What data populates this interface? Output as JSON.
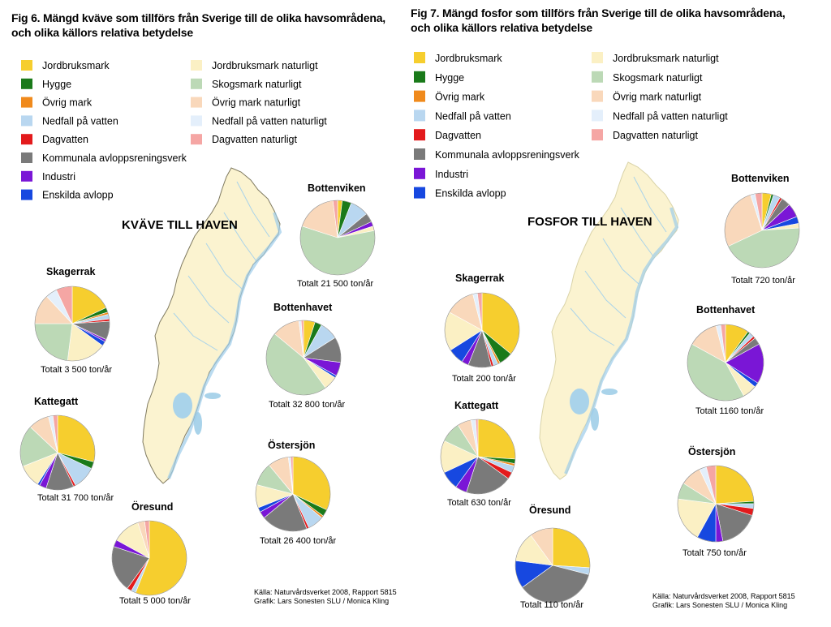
{
  "categories": [
    {
      "label": "Jordbruksmark",
      "color": "#f6ce2e"
    },
    {
      "label": "Hygge",
      "color": "#1a7a1a"
    },
    {
      "label": "Övrig mark",
      "color": "#f08a1c"
    },
    {
      "label": "Nedfall på vatten",
      "color": "#b9d7f0"
    },
    {
      "label": "Dagvatten",
      "color": "#e31a1c"
    },
    {
      "label": "Kommunala avloppsreningsverk",
      "color": "#7a7a7a"
    },
    {
      "label": "Industri",
      "color": "#7a16d6"
    },
    {
      "label": "Enskilda avlopp",
      "color": "#1748e0"
    },
    {
      "label": "Jordbruksmark naturligt",
      "color": "#fbf0c4"
    },
    {
      "label": "Skogsmark naturligt",
      "color": "#bcd9b6"
    },
    {
      "label": "Övrig mark naturligt",
      "color": "#f9d8bb"
    },
    {
      "label": "Nedfall på vatten naturligt",
      "color": "#e4effb"
    },
    {
      "label": "Dagvatten naturligt",
      "color": "#f5a6a4"
    }
  ],
  "panels": [
    {
      "title_line1": "Fig 6. Mängd kväve som tillförs från Sverige till de olika havsområdena,",
      "title_line2": "och olika källors relativa betydelse",
      "map_title": "KVÄVE TILL HAVEN",
      "source_line1": "Källa: Naturvårdsverket 2008, Rapport 5815",
      "source_line2": "Grafik: Lars Sonesten SLU / Monica Kling"
    },
    {
      "title_line1": "Fig 7. Mängd fosfor som tillförs från Sverige till de olika havsområdena,",
      "title_line2": "och olika källors relativa betydelse",
      "map_title": "FOSFOR TILL HAVEN",
      "source_line1": "Källa: Naturvårdsverket 2008, Rapport 5815",
      "source_line2": "Grafik: Lars Sonesten SLU / Monica Kling"
    }
  ],
  "chart_data": [
    {
      "type": "pie",
      "title": "Fig 6. Mängd kväve som tillförs från Sverige till de olika havsområdena, och olika källors relativa betydelse",
      "unit": "%",
      "pies": [
        {
          "name": "Bottenviken",
          "total": "Totalt 21 500 ton/år",
          "values": [
            2,
            4,
            0,
            8,
            0,
            4,
            2,
            0,
            2,
            58,
            18,
            0,
            2
          ]
        },
        {
          "name": "Skagerrak",
          "total": "Totalt 3 500 ton/år",
          "values": [
            18,
            2,
            1,
            2,
            1,
            8,
            1,
            2,
            17,
            23,
            13,
            5,
            7
          ]
        },
        {
          "name": "Bottenhavet",
          "total": "Totalt 32 800 ton/år",
          "values": [
            5,
            3,
            0,
            8,
            0,
            11,
            6,
            1,
            6,
            46,
            12,
            1,
            1
          ]
        },
        {
          "name": "Kattegatt",
          "total": "Totalt 31 700 ton/år",
          "values": [
            29,
            3,
            0,
            10,
            1,
            12,
            3,
            1,
            10,
            18,
            9,
            2,
            2
          ]
        },
        {
          "name": "Östersjön",
          "total": "Totalt 26 400 ton/år",
          "values": [
            32,
            3,
            1,
            7,
            1,
            20,
            3,
            2,
            10,
            10,
            9,
            1,
            1
          ]
        },
        {
          "name": "Öresund",
          "total": "Totalt 5 000 ton/år",
          "values": [
            56,
            0,
            0,
            2,
            2,
            20,
            3,
            0,
            12,
            0,
            3,
            0,
            2
          ]
        }
      ]
    },
    {
      "type": "pie",
      "title": "Fig 7. Mängd fosfor som tillförs från Sverige till de olika havsområdena, och olika källors relativa betydelse",
      "unit": "%",
      "pies": [
        {
          "name": "Bottenviken",
          "total": "Totalt 720 ton/år",
          "values": [
            4,
            1,
            0,
            3,
            1,
            4,
            6,
            3,
            2,
            44,
            27,
            2,
            3
          ]
        },
        {
          "name": "Skagerrak",
          "total": "Totalt 200 ton/år",
          "values": [
            36,
            6,
            1,
            2,
            1,
            10,
            3,
            7,
            17,
            0,
            13,
            2,
            2
          ]
        },
        {
          "name": "Bottenhavet",
          "total": "Totalt 1160 ton/år",
          "values": [
            10,
            1,
            0,
            2,
            1,
            3,
            17,
            2,
            6,
            41,
            13,
            2,
            2
          ]
        },
        {
          "name": "Kattegatt",
          "total": "Totalt 630 ton/år",
          "values": [
            26,
            2,
            1,
            3,
            3,
            20,
            5,
            8,
            14,
            9,
            6,
            2,
            1
          ]
        },
        {
          "name": "Östersjön",
          "total": "Totalt 750 ton/år",
          "values": [
            24,
            1,
            0,
            2,
            3,
            17,
            3,
            8,
            19,
            7,
            9,
            3,
            4
          ]
        },
        {
          "name": "Öresund",
          "total": "Totalt 110 ton/år",
          "values": [
            26,
            0,
            0,
            3,
            0,
            36,
            0,
            12,
            13,
            0,
            10,
            0,
            0
          ]
        }
      ]
    }
  ]
}
